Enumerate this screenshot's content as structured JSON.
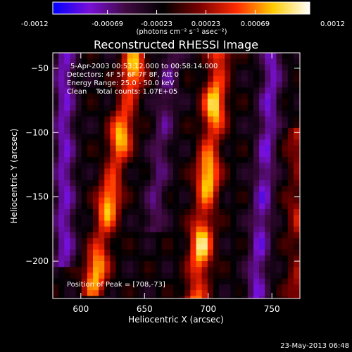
{
  "chart_data": {
    "type": "heatmap",
    "title": "Reconstructed RHESSI Image",
    "xlabel": "Heliocentric X (arcsec)",
    "ylabel": "Heliocentric Y (arcsec)",
    "xlim": [
      578,
      772
    ],
    "ylim": [
      -229,
      -38
    ],
    "x_ticks": [
      600,
      650,
      700,
      750
    ],
    "y_ticks": [
      -50,
      -100,
      -150,
      -200
    ],
    "colorbar": {
      "min": -0.0012,
      "max": 0.0012,
      "ticks": [
        "-0.0012",
        "-0.00069",
        "-0.00023",
        "0.00023",
        "0.00069",
        "0.0012"
      ],
      "tick_values": [
        -0.0012,
        -0.00069,
        -0.00023,
        0.00023,
        0.00069,
        0.0012
      ],
      "units_text": "(photons cm⁻² s⁻¹ asec⁻²)",
      "colors": [
        "#0000ff",
        "#7a10d8",
        "#400a40",
        "#000000",
        "#7a0000",
        "#ff2a00",
        "#ffcc00",
        "#ffffff"
      ]
    },
    "annotations": [
      "5-Apr-2003 00:53:12.000 to 00:58:14.000",
      "Detectors: 4F 5F 6F 7F 8F, Att 0",
      "Energy Range: 25.0 - 50.0 keV",
      "Clean    Total counts: 1.07E+05"
    ],
    "peak_text": "Position of Peak = [708,-73]",
    "bright_streaks": [
      {
        "x_top": 640,
        "y_top": -42,
        "x_bottom": 608,
        "y_bottom": -215,
        "peak": 0.0011
      },
      {
        "x_top": 706,
        "y_top": -42,
        "x_bottom": 688,
        "y_bottom": -229,
        "peak": 0.0012
      },
      {
        "x_top": 768,
        "y_top": -105,
        "x_bottom": 768,
        "y_bottom": -229,
        "peak": 0.0005
      }
    ],
    "dark_streaks": [
      {
        "x_top": 585,
        "y_top": -45,
        "x_bottom": 585,
        "y_bottom": -190,
        "value": -0.0006
      },
      {
        "x_top": 668,
        "y_top": -45,
        "x_bottom": 655,
        "y_bottom": -165,
        "value": -0.0004
      },
      {
        "x_top": 748,
        "y_top": -45,
        "x_bottom": 735,
        "y_bottom": -229,
        "value": -0.0006
      }
    ]
  },
  "footer": {
    "timestamp": "23-May-2013 06:48"
  }
}
